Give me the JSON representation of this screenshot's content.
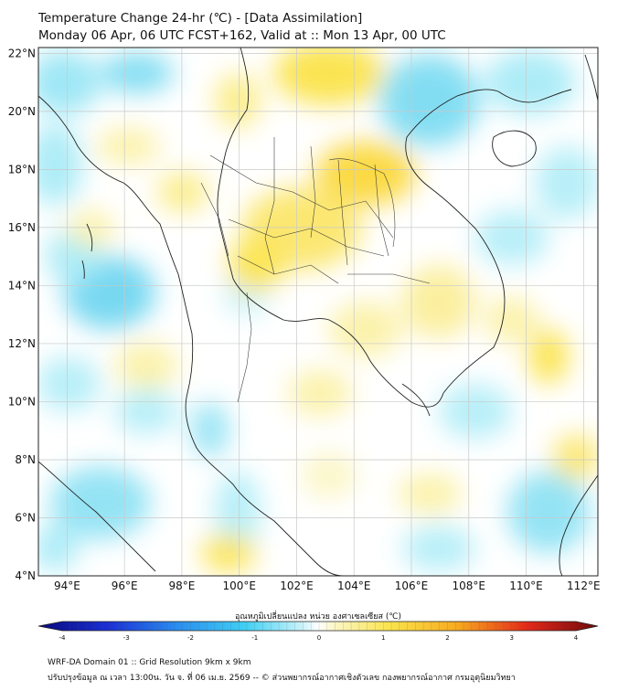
{
  "title": {
    "line1": "Temperature Change 24-hr (℃) - [Data Assimilation]",
    "line2": "Monday 06 Apr, 06 UTC FCST+162, Valid at :: Mon 13 Apr, 00 UTC"
  },
  "map": {
    "lon_range": [
      93,
      112.5
    ],
    "lat_range": [
      4,
      22.2
    ],
    "lon_ticks": [
      "94°E",
      "96°E",
      "98°E",
      "100°E",
      "102°E",
      "104°E",
      "106°E",
      "108°E",
      "110°E",
      "112°E"
    ],
    "lat_ticks": [
      "22°N",
      "20°N",
      "18°N",
      "16°N",
      "14°N",
      "12°N",
      "10°N",
      "8°N",
      "6°N",
      "4°N"
    ],
    "grid": true,
    "warm_color": "#fbe34a",
    "cool_color": "#60d8ee"
  },
  "colorbar": {
    "label": "อุณหภูมิเปลี่ยนแปลง หน่วย องศาเซลเซียส (℃)",
    "ticks": [
      "-4",
      "-3",
      "-2",
      "-1",
      "0",
      "1",
      "2",
      "3",
      "4"
    ],
    "min": -4,
    "max": 4
  },
  "footer": {
    "line1": "WRF-DA Domain 01 :: Grid Resolution 9km x 9km",
    "line2": "ปรับปรุงข้อมูล ณ เวลา 13:00น. วัน จ. ที่ 06 เม.ย. 2569 -- © ส่วนพยากรณ์อากาศเชิงตัวเลข กองพยากรณ์อากาศ กรมอุตุนิยมวิทยา"
  }
}
